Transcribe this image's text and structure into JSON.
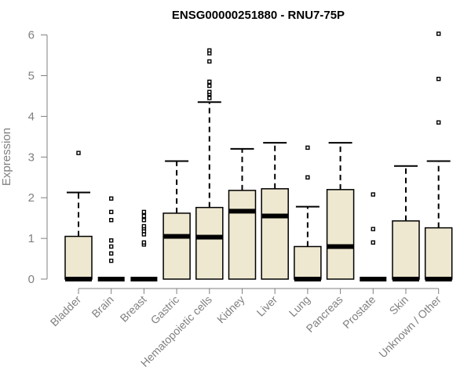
{
  "chart_data": {
    "type": "box",
    "title": "ENSG00000251880 - RNU7-75P",
    "xlabel": "",
    "ylabel": "Expression",
    "ylim": [
      0,
      6
    ],
    "yticks": [
      0,
      1,
      2,
      3,
      4,
      5,
      6
    ],
    "grid": false,
    "legend": "none",
    "colors": {
      "box_fill": "#EEE8D0",
      "stroke": "#000000",
      "axis_text": "#808080"
    },
    "categories": [
      "Bladder",
      "Brain",
      "Breast",
      "Gastric",
      "Hematopoietic cells",
      "Kidney",
      "Liver",
      "Lung",
      "Pancreas",
      "Prostate",
      "Skin",
      "Unknown / Other"
    ],
    "boxes": [
      {
        "q1": 0,
        "median": 0,
        "q3": 1.05,
        "whisker_low": 0,
        "whisker_high": 2.13,
        "outliers": [
          3.1
        ]
      },
      {
        "q1": 0,
        "median": 0,
        "q3": 0,
        "whisker_low": 0,
        "whisker_high": 0,
        "outliers": [
          0.45,
          0.63,
          0.8,
          0.95,
          1.45,
          1.65,
          1.98
        ]
      },
      {
        "q1": 0,
        "median": 0,
        "q3": 0,
        "whisker_low": 0,
        "whisker_high": 0,
        "outliers": [
          0.85,
          0.9,
          1.1,
          1.18,
          1.25,
          1.3,
          1.45,
          1.55,
          1.65
        ]
      },
      {
        "q1": 0,
        "median": 1.05,
        "q3": 1.62,
        "whisker_low": 0,
        "whisker_high": 2.9,
        "outliers": []
      },
      {
        "q1": 0,
        "median": 1.03,
        "q3": 1.76,
        "whisker_low": 0,
        "whisker_high": 4.35,
        "outliers": [
          4.45,
          4.55,
          4.6,
          4.75,
          4.85,
          5.35,
          5.55,
          5.62
        ]
      },
      {
        "q1": 0,
        "median": 1.67,
        "q3": 2.18,
        "whisker_low": 0,
        "whisker_high": 3.2,
        "outliers": []
      },
      {
        "q1": 0,
        "median": 1.55,
        "q3": 2.22,
        "whisker_low": 0,
        "whisker_high": 3.35,
        "outliers": []
      },
      {
        "q1": 0,
        "median": 0,
        "q3": 0.8,
        "whisker_low": 0,
        "whisker_high": 1.78,
        "outliers": [
          2.5,
          3.23
        ]
      },
      {
        "q1": 0,
        "median": 0.8,
        "q3": 2.2,
        "whisker_low": 0,
        "whisker_high": 3.35,
        "outliers": []
      },
      {
        "q1": 0,
        "median": 0,
        "q3": 0,
        "whisker_low": 0,
        "whisker_high": 0,
        "outliers": [
          0.9,
          1.23,
          2.08
        ]
      },
      {
        "q1": 0,
        "median": 0,
        "q3": 1.43,
        "whisker_low": 0,
        "whisker_high": 2.78,
        "outliers": []
      },
      {
        "q1": 0,
        "median": 0,
        "q3": 1.26,
        "whisker_low": 0,
        "whisker_high": 2.9,
        "outliers": [
          3.85,
          4.92,
          6.03
        ]
      }
    ]
  }
}
